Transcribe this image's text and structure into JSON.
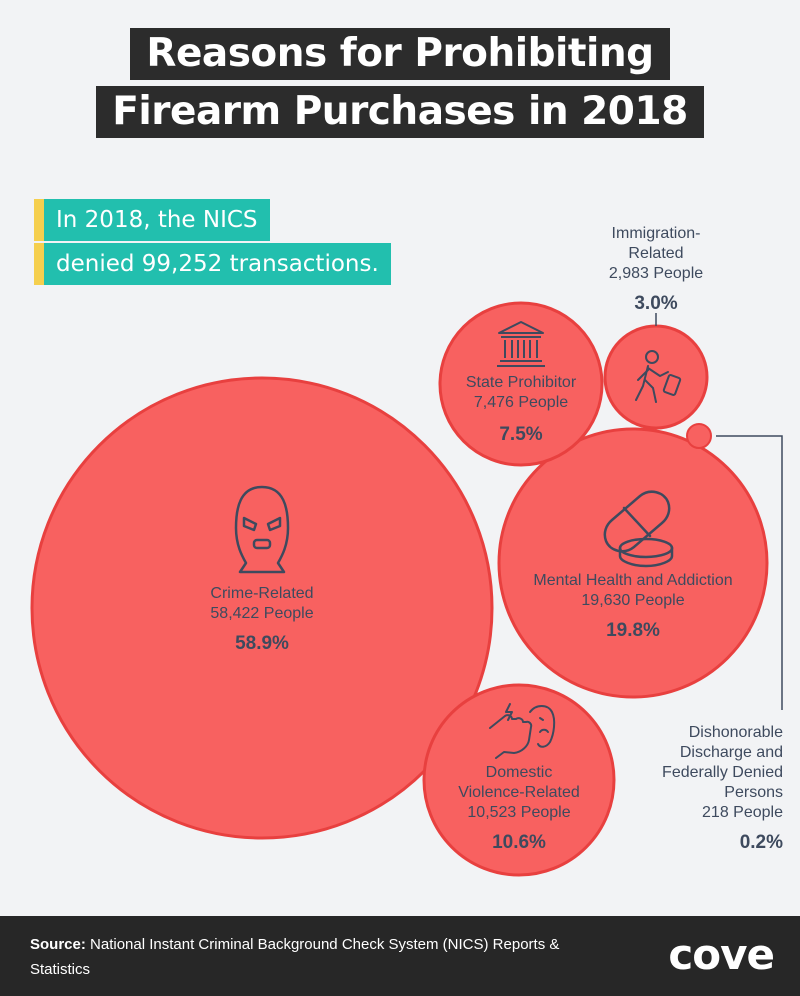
{
  "title": {
    "line1": "Reasons for Prohibiting",
    "line2": "Firearm Purchases in 2018"
  },
  "callout": {
    "line1": "In 2018, the NICS",
    "line2": "denied 99,252 transactions."
  },
  "chart_data": {
    "type": "bubble",
    "title": "Reasons for Prohibiting Firearm Purchases in 2018",
    "unit": "People",
    "bubbles": [
      {
        "label": "Crime-Related",
        "people": "58,422 People",
        "percent": "58.9%",
        "value": 58422,
        "share": 58.9,
        "icon": "balaclava-mask-icon"
      },
      {
        "label": "Mental Health and Addiction",
        "people": "19,630 People",
        "percent": "19.8%",
        "value": 19630,
        "share": 19.8,
        "icon": "pills-icon"
      },
      {
        "label": "Domestic Violence-Related",
        "people": "10,523 People",
        "percent": "10.6%",
        "value": 10523,
        "share": 10.6,
        "icon": "fist-punch-icon"
      },
      {
        "label": "State Prohibitor",
        "people": "7,476 People",
        "percent": "7.5%",
        "value": 7476,
        "share": 7.5,
        "icon": "courthouse-icon"
      },
      {
        "label": "Immigration-Related",
        "people": "2,983 People",
        "percent": "3.0%",
        "value": 2983,
        "share": 3.0,
        "icon": "traveler-luggage-icon"
      },
      {
        "label": "Dishonorable Discharge and Federally Denied Persons",
        "people": "218 People",
        "percent": "0.2%",
        "value": 218,
        "share": 0.2,
        "icon": ""
      }
    ],
    "colors": {
      "bubble": "#f86160",
      "bubble_edge": "#e8403f",
      "icon": "#3e4a5e"
    }
  },
  "labels": {
    "crime": {
      "l1": "Crime-Related"
    },
    "mental": {
      "l1": "Mental Health and Addiction"
    },
    "domestic": {
      "l1": "Domestic",
      "l2": "Violence-Related"
    },
    "state": {
      "l1": "State Prohibitor"
    },
    "immigration": {
      "l1": "Immigration-",
      "l2": "Related"
    },
    "dishonorable": {
      "l1": "Dishonorable",
      "l2": "Discharge and",
      "l3": "Federally Denied",
      "l4": "Persons"
    }
  },
  "footer": {
    "source_label": "Source:",
    "source_text": " National Instant Criminal Background Check System (NICS) Reports & Statistics",
    "logo": "cove"
  }
}
